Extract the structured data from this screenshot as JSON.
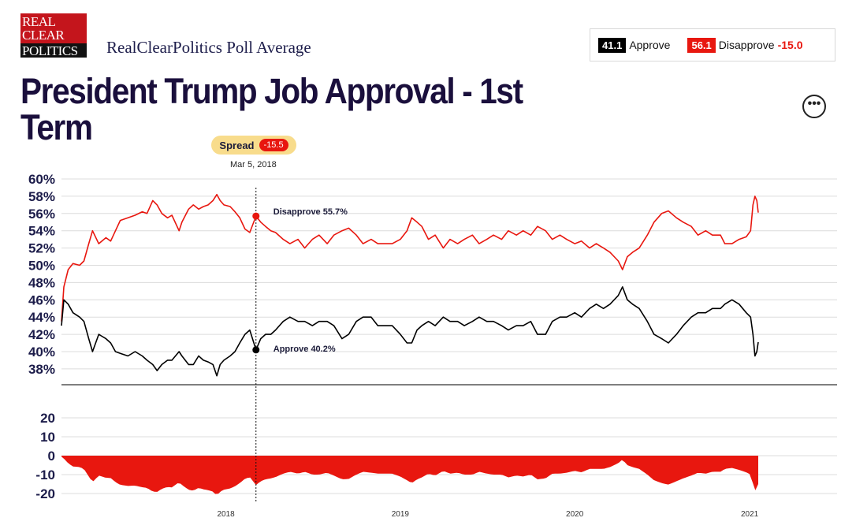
{
  "logo": {
    "line1": "REAL",
    "line2": "CLEAR",
    "line3": "POLITICS"
  },
  "site_name": "RealClearPolitics Poll Average",
  "summary": {
    "approve_value": "41.1",
    "approve_label": "Approve",
    "disapprove_value": "56.1",
    "disapprove_label": "Disapprove",
    "spread": "-15.0"
  },
  "title": "President Trump Job Approval - 1st Term",
  "more_button": "•••",
  "tooltip": {
    "spread_label": "Spread",
    "spread_value": "-15.5",
    "date": "Mar 5, 2018",
    "disapprove_label": "Disapprove 55.7%",
    "approve_label": "Approve 40.2%"
  },
  "colors": {
    "approve": "#000000",
    "disapprove": "#e8170f",
    "title": "#1a0f3c",
    "spread_pill": "#f8dc8c"
  },
  "chart_data": [
    {
      "type": "line",
      "x_unit": "date",
      "series": [
        {
          "name": "Disapprove",
          "color": "#e8170f",
          "points": [
            [
              "2017-01-22",
              43.5
            ],
            [
              "2017-01-27",
              47.5
            ],
            [
              "2017-02-05",
              49.5
            ],
            [
              "2017-02-15",
              50.2
            ],
            [
              "2017-03-01",
              50.0
            ],
            [
              "2017-03-10",
              50.5
            ],
            [
              "2017-03-20",
              52.5
            ],
            [
              "2017-03-28",
              54.0
            ],
            [
              "2017-04-10",
              52.5
            ],
            [
              "2017-04-25",
              53.2
            ],
            [
              "2017-05-05",
              52.8
            ],
            [
              "2017-05-15",
              54.0
            ],
            [
              "2017-05-25",
              55.2
            ],
            [
              "2017-06-10",
              55.5
            ],
            [
              "2017-06-25",
              55.8
            ],
            [
              "2017-07-10",
              56.2
            ],
            [
              "2017-07-20",
              56.0
            ],
            [
              "2017-08-01",
              57.5
            ],
            [
              "2017-08-10",
              57.0
            ],
            [
              "2017-08-20",
              56.0
            ],
            [
              "2017-09-01",
              55.5
            ],
            [
              "2017-09-10",
              55.8
            ],
            [
              "2017-09-25",
              54.0
            ],
            [
              "2017-10-01",
              55.0
            ],
            [
              "2017-10-15",
              56.5
            ],
            [
              "2017-10-25",
              57.0
            ],
            [
              "2017-11-05",
              56.5
            ],
            [
              "2017-11-15",
              56.8
            ],
            [
              "2017-11-25",
              57.0
            ],
            [
              "2017-12-05",
              57.5
            ],
            [
              "2017-12-13",
              58.2
            ],
            [
              "2017-12-20",
              57.5
            ],
            [
              "2017-12-28",
              57.0
            ],
            [
              "2018-01-10",
              56.8
            ],
            [
              "2018-01-20",
              56.2
            ],
            [
              "2018-01-30",
              55.5
            ],
            [
              "2018-02-10",
              54.2
            ],
            [
              "2018-02-20",
              53.8
            ],
            [
              "2018-03-05",
              55.7
            ],
            [
              "2018-03-15",
              55.0
            ],
            [
              "2018-03-25",
              54.5
            ],
            [
              "2018-04-05",
              54.0
            ],
            [
              "2018-04-15",
              53.8
            ],
            [
              "2018-05-01",
              53.0
            ],
            [
              "2018-05-15",
              52.5
            ],
            [
              "2018-06-01",
              53.0
            ],
            [
              "2018-06-15",
              52.0
            ],
            [
              "2018-07-01",
              53.0
            ],
            [
              "2018-07-15",
              53.5
            ],
            [
              "2018-08-01",
              52.5
            ],
            [
              "2018-08-15",
              53.5
            ],
            [
              "2018-09-01",
              54.0
            ],
            [
              "2018-09-15",
              54.3
            ],
            [
              "2018-10-01",
              53.5
            ],
            [
              "2018-10-15",
              52.5
            ],
            [
              "2018-11-01",
              53.0
            ],
            [
              "2018-11-15",
              52.5
            ],
            [
              "2018-12-01",
              52.5
            ],
            [
              "2018-12-15",
              52.5
            ],
            [
              "2019-01-01",
              53.0
            ],
            [
              "2019-01-15",
              54.0
            ],
            [
              "2019-01-25",
              55.5
            ],
            [
              "2019-02-05",
              55.0
            ],
            [
              "2019-02-15",
              54.5
            ],
            [
              "2019-03-01",
              53.0
            ],
            [
              "2019-03-15",
              53.5
            ],
            [
              "2019-04-01",
              52.0
            ],
            [
              "2019-04-15",
              53.0
            ],
            [
              "2019-05-01",
              52.5
            ],
            [
              "2019-05-15",
              53.0
            ],
            [
              "2019-06-01",
              53.5
            ],
            [
              "2019-06-15",
              52.5
            ],
            [
              "2019-07-01",
              53.0
            ],
            [
              "2019-07-15",
              53.5
            ],
            [
              "2019-08-01",
              53.0
            ],
            [
              "2019-08-15",
              54.0
            ],
            [
              "2019-09-01",
              53.5
            ],
            [
              "2019-09-15",
              54.0
            ],
            [
              "2019-10-01",
              53.5
            ],
            [
              "2019-10-15",
              54.5
            ],
            [
              "2019-11-01",
              54.0
            ],
            [
              "2019-11-15",
              53.0
            ],
            [
              "2019-12-01",
              53.5
            ],
            [
              "2019-12-15",
              53.0
            ],
            [
              "2020-01-01",
              52.5
            ],
            [
              "2020-01-15",
              52.8
            ],
            [
              "2020-02-01",
              52.0
            ],
            [
              "2020-02-15",
              52.5
            ],
            [
              "2020-03-01",
              52.0
            ],
            [
              "2020-03-15",
              51.5
            ],
            [
              "2020-04-01",
              50.5
            ],
            [
              "2020-04-10",
              49.5
            ],
            [
              "2020-04-20",
              51.0
            ],
            [
              "2020-05-01",
              51.5
            ],
            [
              "2020-05-15",
              52.0
            ],
            [
              "2020-06-01",
              53.5
            ],
            [
              "2020-06-15",
              55.0
            ],
            [
              "2020-07-01",
              56.0
            ],
            [
              "2020-07-15",
              56.3
            ],
            [
              "2020-08-01",
              55.5
            ],
            [
              "2020-08-15",
              55.0
            ],
            [
              "2020-09-01",
              54.5
            ],
            [
              "2020-09-15",
              53.5
            ],
            [
              "2020-10-01",
              54.0
            ],
            [
              "2020-10-15",
              53.5
            ],
            [
              "2020-11-01",
              53.5
            ],
            [
              "2020-11-10",
              52.5
            ],
            [
              "2020-11-25",
              52.5
            ],
            [
              "2020-12-10",
              53.0
            ],
            [
              "2020-12-25",
              53.3
            ],
            [
              "2021-01-03",
              54.0
            ],
            [
              "2021-01-08",
              57.0
            ],
            [
              "2021-01-12",
              58.0
            ],
            [
              "2021-01-16",
              57.5
            ],
            [
              "2021-01-19",
              56.1
            ]
          ]
        },
        {
          "name": "Approve",
          "color": "#000000",
          "points": [
            [
              "2017-01-22",
              43.0
            ],
            [
              "2017-01-27",
              46.0
            ],
            [
              "2017-02-05",
              45.5
            ],
            [
              "2017-02-15",
              44.5
            ],
            [
              "2017-03-01",
              44.0
            ],
            [
              "2017-03-10",
              43.5
            ],
            [
              "2017-03-20",
              41.5
            ],
            [
              "2017-03-28",
              40.0
            ],
            [
              "2017-04-10",
              42.0
            ],
            [
              "2017-04-25",
              41.5
            ],
            [
              "2017-05-05",
              41.0
            ],
            [
              "2017-05-15",
              40.0
            ],
            [
              "2017-05-25",
              39.8
            ],
            [
              "2017-06-10",
              39.5
            ],
            [
              "2017-06-25",
              40.0
            ],
            [
              "2017-07-10",
              39.5
            ],
            [
              "2017-07-20",
              39.0
            ],
            [
              "2017-08-01",
              38.5
            ],
            [
              "2017-08-10",
              37.8
            ],
            [
              "2017-08-20",
              38.5
            ],
            [
              "2017-09-01",
              39.0
            ],
            [
              "2017-09-10",
              39.0
            ],
            [
              "2017-09-25",
              40.0
            ],
            [
              "2017-10-01",
              39.5
            ],
            [
              "2017-10-15",
              38.5
            ],
            [
              "2017-10-25",
              38.5
            ],
            [
              "2017-11-05",
              39.5
            ],
            [
              "2017-11-15",
              39.0
            ],
            [
              "2017-11-25",
              38.8
            ],
            [
              "2017-12-05",
              38.5
            ],
            [
              "2017-12-13",
              37.2
            ],
            [
              "2017-12-20",
              38.5
            ],
            [
              "2017-12-28",
              39.0
            ],
            [
              "2018-01-10",
              39.5
            ],
            [
              "2018-01-20",
              40.0
            ],
            [
              "2018-01-30",
              41.0
            ],
            [
              "2018-02-10",
              42.0
            ],
            [
              "2018-02-20",
              42.5
            ],
            [
              "2018-03-05",
              40.2
            ],
            [
              "2018-03-15",
              41.5
            ],
            [
              "2018-03-25",
              42.0
            ],
            [
              "2018-04-05",
              42.0
            ],
            [
              "2018-04-15",
              42.5
            ],
            [
              "2018-05-01",
              43.5
            ],
            [
              "2018-05-15",
              44.0
            ],
            [
              "2018-06-01",
              43.5
            ],
            [
              "2018-06-15",
              43.5
            ],
            [
              "2018-07-01",
              43.0
            ],
            [
              "2018-07-15",
              43.5
            ],
            [
              "2018-08-01",
              43.5
            ],
            [
              "2018-08-15",
              43.0
            ],
            [
              "2018-09-01",
              41.5
            ],
            [
              "2018-09-15",
              42.0
            ],
            [
              "2018-10-01",
              43.5
            ],
            [
              "2018-10-15",
              44.0
            ],
            [
              "2018-11-01",
              44.0
            ],
            [
              "2018-11-15",
              43.0
            ],
            [
              "2018-12-01",
              43.0
            ],
            [
              "2018-12-15",
              43.0
            ],
            [
              "2019-01-01",
              42.0
            ],
            [
              "2019-01-15",
              41.0
            ],
            [
              "2019-01-25",
              41.0
            ],
            [
              "2019-02-05",
              42.5
            ],
            [
              "2019-02-15",
              43.0
            ],
            [
              "2019-03-01",
              43.5
            ],
            [
              "2019-03-15",
              43.0
            ],
            [
              "2019-04-01",
              44.0
            ],
            [
              "2019-04-15",
              43.5
            ],
            [
              "2019-05-01",
              43.5
            ],
            [
              "2019-05-15",
              43.0
            ],
            [
              "2019-06-01",
              43.5
            ],
            [
              "2019-06-15",
              44.0
            ],
            [
              "2019-07-01",
              43.5
            ],
            [
              "2019-07-15",
              43.5
            ],
            [
              "2019-08-01",
              43.0
            ],
            [
              "2019-08-15",
              42.5
            ],
            [
              "2019-09-01",
              43.0
            ],
            [
              "2019-09-15",
              43.0
            ],
            [
              "2019-10-01",
              43.5
            ],
            [
              "2019-10-15",
              42.0
            ],
            [
              "2019-11-01",
              42.0
            ],
            [
              "2019-11-15",
              43.5
            ],
            [
              "2019-12-01",
              44.0
            ],
            [
              "2019-12-15",
              44.0
            ],
            [
              "2020-01-01",
              44.5
            ],
            [
              "2020-01-15",
              44.0
            ],
            [
              "2020-02-01",
              45.0
            ],
            [
              "2020-02-15",
              45.5
            ],
            [
              "2020-03-01",
              45.0
            ],
            [
              "2020-03-15",
              45.5
            ],
            [
              "2020-04-01",
              46.5
            ],
            [
              "2020-04-10",
              47.5
            ],
            [
              "2020-04-20",
              46.0
            ],
            [
              "2020-05-01",
              45.5
            ],
            [
              "2020-05-15",
              45.0
            ],
            [
              "2020-06-01",
              43.5
            ],
            [
              "2020-06-15",
              42.0
            ],
            [
              "2020-07-01",
              41.5
            ],
            [
              "2020-07-15",
              41.0
            ],
            [
              "2020-08-01",
              42.0
            ],
            [
              "2020-08-15",
              43.0
            ],
            [
              "2020-09-01",
              44.0
            ],
            [
              "2020-09-15",
              44.5
            ],
            [
              "2020-10-01",
              44.5
            ],
            [
              "2020-10-15",
              45.0
            ],
            [
              "2020-11-01",
              45.0
            ],
            [
              "2020-11-10",
              45.5
            ],
            [
              "2020-11-25",
              46.0
            ],
            [
              "2020-12-10",
              45.5
            ],
            [
              "2020-12-25",
              44.5
            ],
            [
              "2021-01-03",
              44.0
            ],
            [
              "2021-01-08",
              42.0
            ],
            [
              "2021-01-12",
              39.5
            ],
            [
              "2021-01-16",
              40.0
            ],
            [
              "2021-01-19",
              41.1
            ]
          ]
        }
      ],
      "y_ticks": [
        "60%",
        "58%",
        "56%",
        "54%",
        "52%",
        "50%",
        "48%",
        "46%",
        "44%",
        "42%",
        "40%",
        "38%"
      ],
      "y_tick_values": [
        60,
        58,
        56,
        54,
        52,
        50,
        48,
        46,
        44,
        42,
        40,
        38
      ],
      "ylim": [
        36.5,
        60.5
      ],
      "grid": true
    },
    {
      "type": "area",
      "series": [
        {
          "color": "#e8170f",
          "derived_from": "Approve minus Disapprove"
        }
      ],
      "y_ticks": [
        "20",
        "10",
        "0",
        "-10",
        "-20"
      ],
      "y_tick_values": [
        20,
        10,
        0,
        -10,
        -20
      ],
      "ylim": [
        -22,
        25
      ],
      "x_ticks": [
        "2018",
        "2019",
        "2020",
        "2021"
      ],
      "x_tick_dates": [
        "2018-01-01",
        "2019-01-01",
        "2020-01-01",
        "2021-01-01"
      ],
      "xlim": [
        "2017-01-22",
        "2021-01-19"
      ],
      "grid": true
    }
  ]
}
